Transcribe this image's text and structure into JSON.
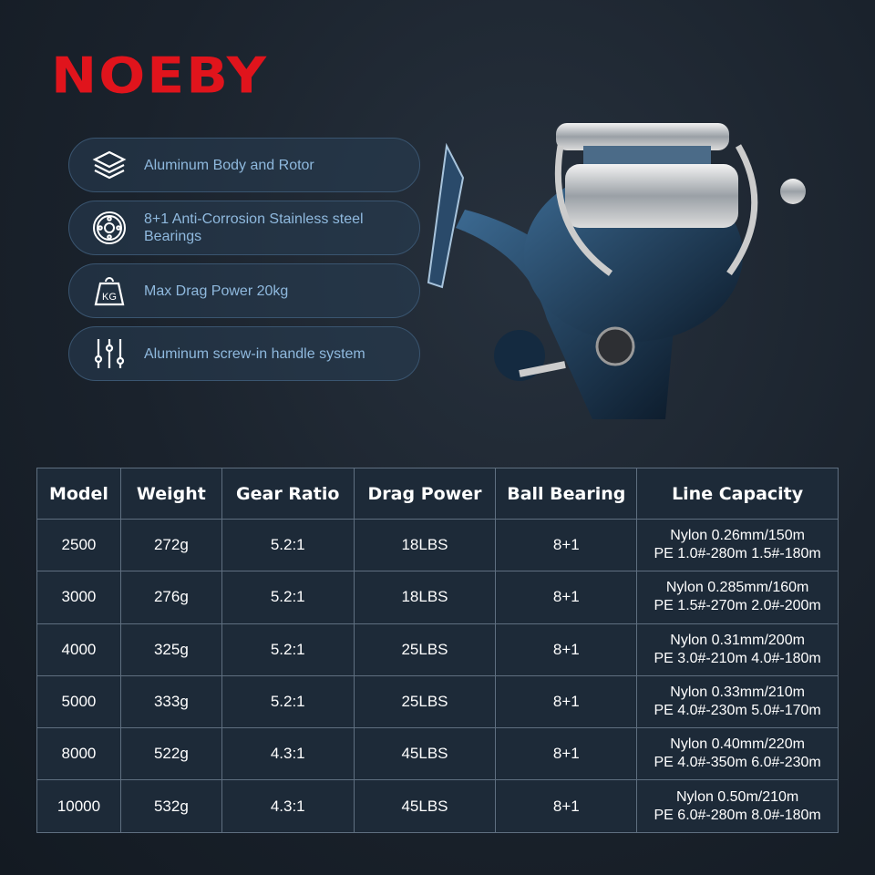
{
  "brand": {
    "logo": "NOEBY",
    "color": "#e0141c"
  },
  "features": [
    {
      "icon": "layers-icon",
      "text": "Aluminum Body and Rotor"
    },
    {
      "icon": "bearing-icon",
      "text": "8+1 Anti-Corrosion Stainless steel Bearings"
    },
    {
      "icon": "weight-kg-icon",
      "text": "Max Drag Power 20kg"
    },
    {
      "icon": "sliders-icon",
      "text": "Aluminum screw-in handle system"
    }
  ],
  "table": {
    "headers": [
      "Model",
      "Weight",
      "Gear Ratio",
      "Drag Power",
      "Ball Bearing",
      "Line Capacity"
    ],
    "rows": [
      {
        "model": "2500",
        "weight": "272g",
        "gear": "5.2:1",
        "drag": "18LBS",
        "bearing": "8+1",
        "line1": "Nylon 0.26mm/150m",
        "line2": "PE 1.0#-280m 1.5#-180m"
      },
      {
        "model": "3000",
        "weight": "276g",
        "gear": "5.2:1",
        "drag": "18LBS",
        "bearing": "8+1",
        "line1": "Nylon 0.285mm/160m",
        "line2": "PE 1.5#-270m 2.0#-200m"
      },
      {
        "model": "4000",
        "weight": "325g",
        "gear": "5.2:1",
        "drag": "25LBS",
        "bearing": "8+1",
        "line1": "Nylon 0.31mm/200m",
        "line2": "PE 3.0#-210m 4.0#-180m"
      },
      {
        "model": "5000",
        "weight": "333g",
        "gear": "5.2:1",
        "drag": "25LBS",
        "bearing": "8+1",
        "line1": "Nylon 0.33mm/210m",
        "line2": "PE 4.0#-230m 5.0#-170m"
      },
      {
        "model": "8000",
        "weight": "522g",
        "gear": "4.3:1",
        "drag": "45LBS",
        "bearing": "8+1",
        "line1": "Nylon 0.40mm/220m",
        "line2": "PE 4.0#-350m 6.0#-230m"
      },
      {
        "model": "10000",
        "weight": "532g",
        "gear": "4.3:1",
        "drag": "45LBS",
        "bearing": "8+1",
        "line1": "Nylon 0.50m/210m",
        "line2": "PE 6.0#-280m 8.0#-180m"
      }
    ]
  }
}
